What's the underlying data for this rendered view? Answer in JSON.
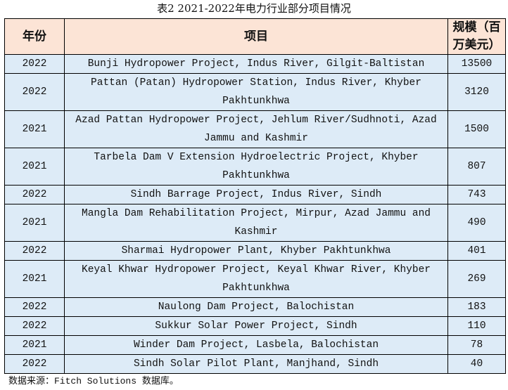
{
  "caption": "表2 2021-2022年电力行业部分项目情况",
  "header": {
    "year": "年份",
    "project": "项目",
    "scale": "规模（百万美元）"
  },
  "colors": {
    "header_bg": "#fce4d6",
    "row_bg": "#ddebf7",
    "border": "#000000"
  },
  "rows": [
    {
      "year": "2022",
      "project": "Bunji Hydropower Project, Indus River, Gilgit-Baltistan",
      "scale": "13500"
    },
    {
      "year": "2022",
      "project": "Pattan (Patan) Hydropower Station, Indus River, Khyber Pakhtunkhwa",
      "scale": "3120"
    },
    {
      "year": "2021",
      "project": "Azad Pattan Hydropower Project, Jehlum River/Sudhnoti, Azad Jammu and Kashmir",
      "scale": "1500"
    },
    {
      "year": "2021",
      "project": "Tarbela Dam V Extension Hydroelectric Project, Khyber Pakhtunkhwa",
      "scale": "807"
    },
    {
      "year": "2022",
      "project": "Sindh Barrage Project, Indus River, Sindh",
      "scale": "743"
    },
    {
      "year": "2021",
      "project": "Mangla Dam Rehabilitation Project, Mirpur, Azad Jammu and Kashmir",
      "scale": "490"
    },
    {
      "year": "2022",
      "project": "Sharmai Hydropower Plant, Khyber Pakhtunkhwa",
      "scale": "401"
    },
    {
      "year": "2021",
      "project": "Keyal Khwar Hydropower Project, Keyal Khwar River, Khyber Pakhtunkhwa",
      "scale": "269"
    },
    {
      "year": "2022",
      "project": "Naulong Dam Project, Balochistan",
      "scale": "183"
    },
    {
      "year": "2022",
      "project": "Sukkur Solar Power Project, Sindh",
      "scale": "110"
    },
    {
      "year": "2021",
      "project": "Winder Dam Project, Lasbela, Balochistan",
      "scale": "78"
    },
    {
      "year": "2022",
      "project": "Sindh Solar Pilot Plant, Manjhand, Sindh",
      "scale": "40"
    }
  ],
  "footnote": "数据来源：Fitch Solutions 数据库。"
}
